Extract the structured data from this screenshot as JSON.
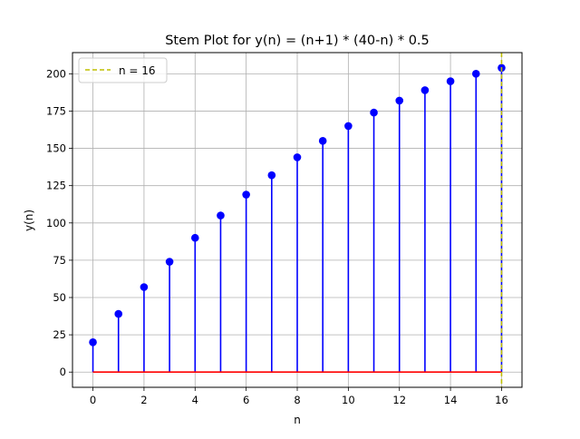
{
  "chart_data": {
    "type": "stem",
    "title": "Stem Plot for y(n) = (n+1) * (40-n) * 0.5",
    "xlabel": "n",
    "ylabel": "y(n)",
    "xlim": [
      -0.8,
      16.8
    ],
    "ylim": [
      -10.2,
      214.2
    ],
    "xticks": [
      0,
      2,
      4,
      6,
      8,
      10,
      12,
      14,
      16
    ],
    "yticks": [
      0,
      25,
      50,
      75,
      100,
      125,
      150,
      175,
      200
    ],
    "grid": true,
    "legend": {
      "position": "top-left",
      "entries": [
        "n = 16"
      ]
    },
    "series": [
      {
        "x": [
          0,
          1,
          2,
          3,
          4,
          5,
          6,
          7,
          8,
          9,
          10,
          11,
          12,
          13,
          14,
          15,
          16
        ],
        "values": [
          20,
          39,
          57,
          74,
          90,
          105,
          119,
          132,
          144,
          155,
          165,
          174,
          182,
          189,
          195,
          200,
          204
        ],
        "marker_color": "#0000ff",
        "stem_color": "#0000ff"
      }
    ],
    "baseline": {
      "y": 0,
      "color": "#ff0000"
    },
    "vline": {
      "x": 16,
      "label": "n = 16",
      "color": "#bfbf00",
      "style": "dashed"
    },
    "colors": {
      "grid": "#b0b0b0",
      "axes": "#000000",
      "background": "#ffffff"
    }
  }
}
